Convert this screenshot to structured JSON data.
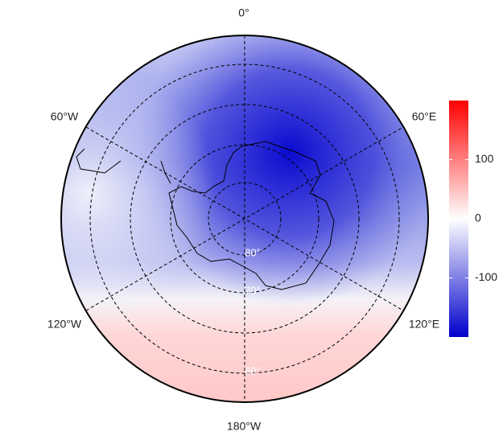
{
  "map": {
    "longitude_labels": [
      "0°",
      "60°E",
      "120°E",
      "180°W",
      "120°W",
      "60°W"
    ],
    "latitude_labels": [
      "80°",
      "70°",
      "60°"
    ],
    "colorbar": {
      "lim": [
        -200,
        200
      ],
      "ticks": [
        -100,
        0,
        100
      ],
      "colors": [
        "#0000cc",
        "#ffffff",
        "#ff0000"
      ]
    }
  }
}
